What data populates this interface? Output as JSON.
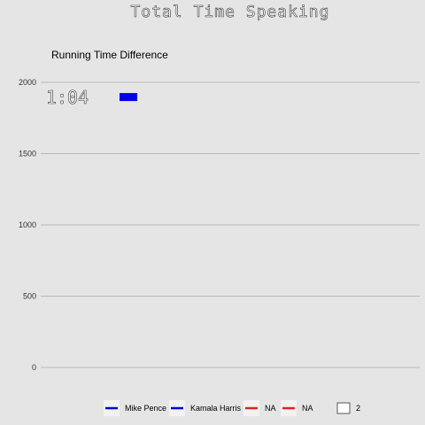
{
  "chart_data": {
    "type": "bar",
    "title": "Total Time Speaking",
    "subtitle": "Running Time Difference",
    "xlabel": "",
    "ylabel": "",
    "ylim": [
      -100,
      2100
    ],
    "yticks": [
      0,
      500,
      1000,
      1500,
      2000
    ],
    "grid": true,
    "legend_position": "bottom",
    "annotation": "1:04",
    "bars": [
      {
        "value": 1900,
        "color": "#0000ee"
      }
    ],
    "legend": [
      {
        "label": "Mike Pence",
        "color": "#0000cc",
        "kind": "line"
      },
      {
        "label": "Kamala Harris",
        "color": "#0000cc",
        "kind": "line"
      },
      {
        "label": "NA",
        "color": "#dd2222",
        "kind": "line"
      },
      {
        "label": "NA",
        "color": "#dd2222",
        "kind": "line"
      },
      {
        "label": "2",
        "color": "#ffffff",
        "kind": "box"
      }
    ]
  }
}
